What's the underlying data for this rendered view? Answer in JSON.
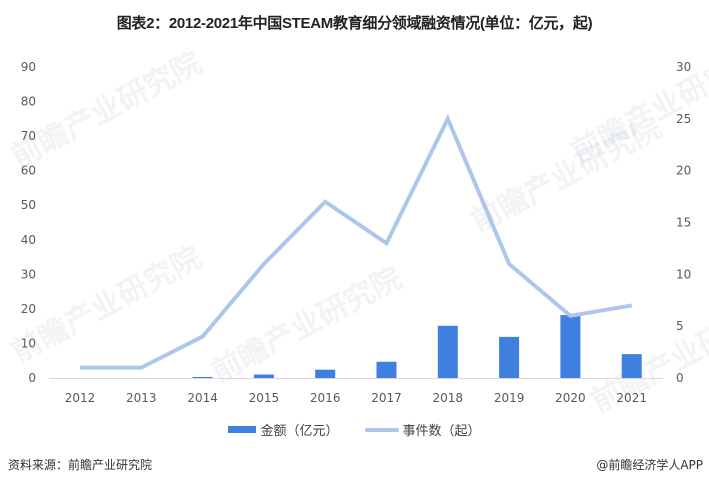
{
  "title": "图表2：2012-2021年中国STEAM教育细分领域融资情况(单位：亿元，起)",
  "footer": {
    "source": "资料来源：前瞻产业研究院",
    "credit": "@前瞻经济学人APP"
  },
  "watermark": "前瞻产业研究院",
  "legend": {
    "bar_label": "金额（亿元）",
    "line_label": "事件数（起）"
  },
  "colors": {
    "bar": "#3f7fdf",
    "line": "#aec6ec",
    "axis": "#d9d9d9"
  },
  "chart_data": {
    "type": "bar+line",
    "title": "图表2：2012-2021年中国STEAM教育细分领域融资情况(单位：亿元，起)",
    "categories": [
      "2012",
      "2013",
      "2014",
      "2015",
      "2016",
      "2017",
      "2018",
      "2019",
      "2020",
      "2021"
    ],
    "series": [
      {
        "name": "金额（亿元）",
        "type": "bar",
        "axis": "left",
        "values": [
          0,
          0,
          0.3,
          1.0,
          2.4,
          4.7,
          15.1,
          11.9,
          18.2,
          6.9
        ]
      },
      {
        "name": "事件数（起）",
        "type": "line",
        "axis": "right",
        "values": [
          1,
          1,
          4,
          11,
          17,
          13,
          25,
          11,
          6,
          7
        ]
      }
    ],
    "y_left": {
      "ticks": [
        0,
        10,
        20,
        30,
        40,
        50,
        60,
        70,
        80,
        90
      ],
      "ylim": [
        0,
        90
      ]
    },
    "y_right": {
      "ticks": [
        0,
        5,
        10,
        15,
        20,
        25,
        30
      ],
      "ylim": [
        0,
        30
      ]
    },
    "xlabel": "",
    "ylabel": "",
    "grid": false,
    "legend_position": "bottom"
  }
}
